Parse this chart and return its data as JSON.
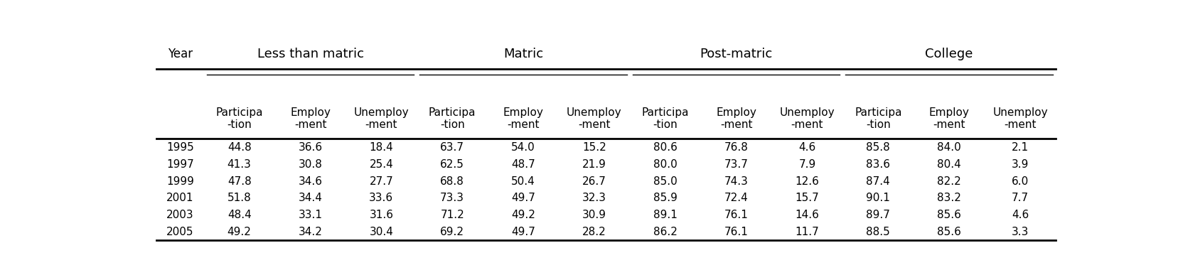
{
  "col_groups": [
    {
      "label": "Less than matric",
      "cols": [
        "Participa\n-tion",
        "Employ\n-ment",
        "Unemploy\n-ment"
      ]
    },
    {
      "label": "Matric",
      "cols": [
        "Participa\n-tion",
        "Employ\n-ment",
        "Unemploy\n-ment"
      ]
    },
    {
      "label": "Post-matric",
      "cols": [
        "Participa\n-tion",
        "Employ\n-ment",
        "Unemploy\n-ment"
      ]
    },
    {
      "label": "College",
      "cols": [
        "Participa\n-tion",
        "Employ\n-ment",
        "Unemploy\n-ment"
      ]
    }
  ],
  "years": [
    "1995",
    "1997",
    "1999",
    "2001",
    "2003",
    "2005"
  ],
  "data": [
    [
      44.8,
      36.6,
      18.4,
      63.7,
      54.0,
      15.2,
      80.6,
      76.8,
      4.6,
      85.8,
      84.0,
      2.1
    ],
    [
      41.3,
      30.8,
      25.4,
      62.5,
      48.7,
      21.9,
      80.0,
      73.7,
      7.9,
      83.6,
      80.4,
      3.9
    ],
    [
      47.8,
      34.6,
      27.7,
      68.8,
      50.4,
      26.7,
      85.0,
      74.3,
      12.6,
      87.4,
      82.2,
      6.0
    ],
    [
      51.8,
      34.4,
      33.6,
      73.3,
      49.7,
      32.3,
      85.9,
      72.4,
      15.7,
      90.1,
      83.2,
      7.7
    ],
    [
      48.4,
      33.1,
      31.6,
      71.2,
      49.2,
      30.9,
      89.1,
      76.1,
      14.6,
      89.7,
      85.6,
      4.6
    ],
    [
      49.2,
      34.2,
      30.4,
      69.2,
      49.7,
      28.2,
      86.2,
      76.1,
      11.7,
      88.5,
      85.6,
      3.3
    ]
  ],
  "background_color": "#ffffff",
  "text_color": "#000000",
  "font_size": 11,
  "header_font_size": 12,
  "group_font_size": 13
}
